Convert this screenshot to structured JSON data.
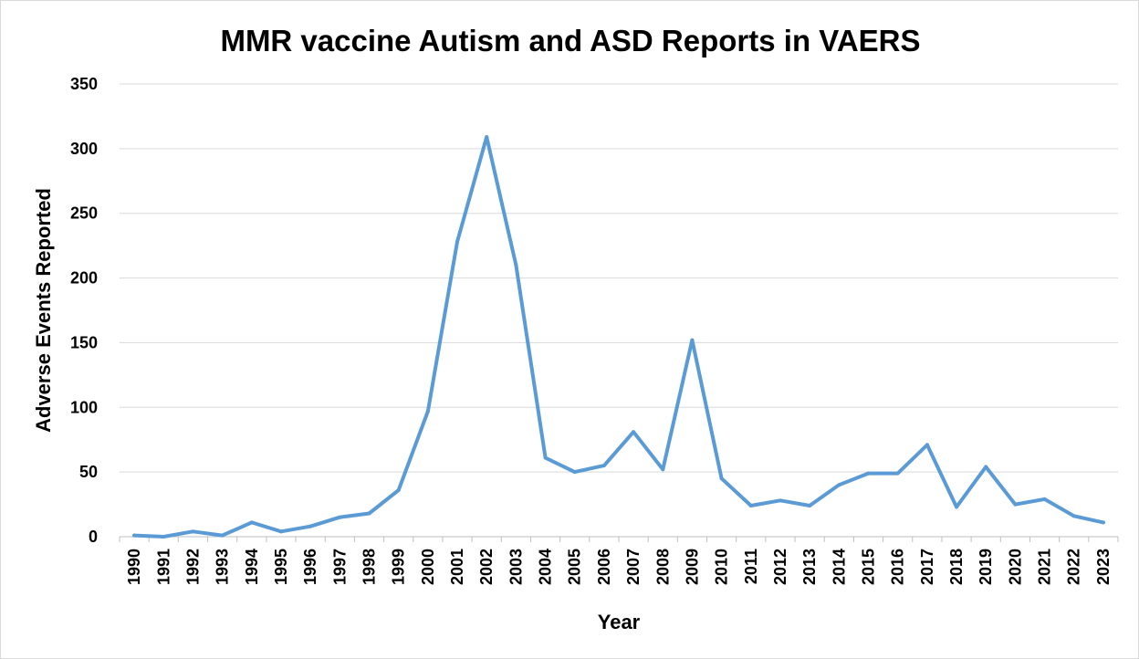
{
  "chart_data": {
    "type": "line",
    "title": "MMR vaccine Autism and ASD Reports in VAERS",
    "xlabel": "Year",
    "ylabel": "Adverse Events Reported",
    "ylim": [
      0,
      350
    ],
    "yticks": [
      0,
      50,
      100,
      150,
      200,
      250,
      300,
      350
    ],
    "grid": true,
    "legend": "none",
    "line_color": "#5b9bd5",
    "grid_color": "#d9d9d9",
    "x": [
      "1990",
      "1991",
      "1992",
      "1993",
      "1994",
      "1995",
      "1996",
      "1997",
      "1998",
      "1999",
      "2000",
      "2001",
      "2002",
      "2003",
      "2004",
      "2005",
      "2006",
      "2007",
      "2008",
      "2009",
      "2010",
      "2011",
      "2012",
      "2013",
      "2014",
      "2015",
      "2016",
      "2017",
      "2018",
      "2019",
      "2020",
      "2021",
      "2022",
      "2023"
    ],
    "series": [
      {
        "values": [
          1,
          0,
          4,
          1,
          11,
          4,
          8,
          15,
          18,
          36,
          97,
          228,
          309,
          210,
          61,
          50,
          55,
          81,
          52,
          152,
          45,
          24,
          28,
          24,
          40,
          49,
          49,
          71,
          23,
          54,
          25,
          29,
          16,
          11
        ]
      }
    ]
  }
}
